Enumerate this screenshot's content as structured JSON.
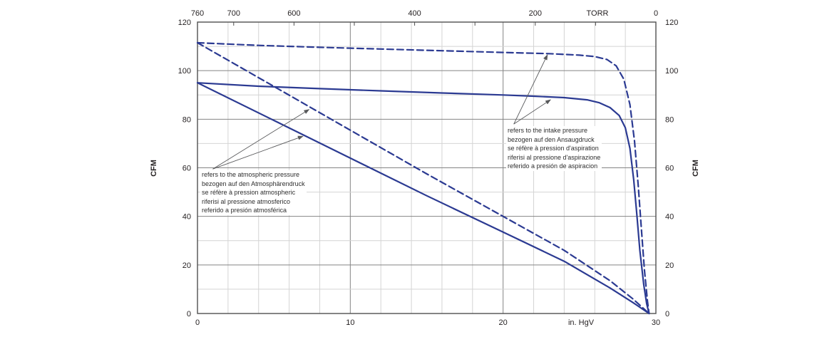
{
  "page": {
    "background": "#ffffff"
  },
  "chart_data": {
    "type": "line",
    "title": "",
    "axes": {
      "bottom": {
        "label": "in. HgV",
        "range": [
          0,
          30
        ],
        "tick_labels": [
          0,
          10,
          20,
          30
        ],
        "minor_step": 2,
        "major_gridlines": [
          10,
          20
        ]
      },
      "top": {
        "label": "TORR",
        "range": [
          760,
          0
        ],
        "tick_labels": [
          760,
          700,
          600,
          400,
          200,
          0
        ],
        "tick_marks": [
          700,
          600,
          500,
          400,
          300,
          200,
          100
        ]
      },
      "left": {
        "label": "CFM",
        "range": [
          0,
          120
        ],
        "tick_labels": [
          0,
          20,
          40,
          60,
          80,
          100,
          120
        ],
        "minor_step": 10,
        "major_step": 20
      },
      "right": {
        "label": "CFM",
        "tick_labels": [
          0,
          20,
          40,
          60,
          80,
          100,
          120
        ]
      }
    },
    "colors": {
      "curve": "#2b3a92",
      "grid_minor": "#d4d4d4",
      "grid_major": "#848484",
      "frame": "#4f4f4f",
      "arrow": "#58595b",
      "text": "#231f20"
    },
    "series": [
      {
        "name": "flow-vs-intake-pressure-dashed",
        "style": "dashed",
        "points": [
          [
            0,
            111.5
          ],
          [
            4,
            110.4
          ],
          [
            8,
            109.6
          ],
          [
            12,
            108.9
          ],
          [
            16,
            108.2
          ],
          [
            20,
            107.5
          ],
          [
            23,
            107
          ],
          [
            25,
            106.4
          ],
          [
            26,
            105.8
          ],
          [
            26.8,
            104.6
          ],
          [
            27.4,
            102
          ],
          [
            27.9,
            96.5
          ],
          [
            28.3,
            86
          ],
          [
            28.6,
            71
          ],
          [
            28.85,
            52
          ],
          [
            29.05,
            35
          ],
          [
            29.25,
            18
          ],
          [
            29.45,
            5
          ],
          [
            29.55,
            0
          ]
        ]
      },
      {
        "name": "flow-vs-intake-pressure-solid",
        "style": "solid",
        "points": [
          [
            0,
            95
          ],
          [
            4,
            93.6
          ],
          [
            8,
            92.6
          ],
          [
            12,
            91.7
          ],
          [
            16,
            90.8
          ],
          [
            20,
            90
          ],
          [
            22,
            89.5
          ],
          [
            24,
            88.9
          ],
          [
            25.5,
            88
          ],
          [
            26.3,
            86.8
          ],
          [
            27,
            84.8
          ],
          [
            27.6,
            81.5
          ],
          [
            28,
            76.5
          ],
          [
            28.3,
            68
          ],
          [
            28.55,
            55
          ],
          [
            28.75,
            41
          ],
          [
            28.95,
            26
          ],
          [
            29.2,
            12
          ],
          [
            29.4,
            4
          ],
          [
            29.55,
            0
          ]
        ]
      },
      {
        "name": "flow-vs-atmospheric-pressure-dashed",
        "style": "dashed",
        "points": [
          [
            0,
            111.5
          ],
          [
            5,
            93.5
          ],
          [
            10,
            75.5
          ],
          [
            15,
            57.5
          ],
          [
            20,
            40
          ],
          [
            24,
            26
          ],
          [
            27,
            13.5
          ],
          [
            28.5,
            6
          ],
          [
            29.55,
            0
          ]
        ]
      },
      {
        "name": "flow-vs-atmospheric-pressure-solid",
        "style": "solid",
        "points": [
          [
            0,
            95
          ],
          [
            5,
            79.5
          ],
          [
            10,
            64
          ],
          [
            15,
            48.5
          ],
          [
            20,
            33.5
          ],
          [
            24,
            21.5
          ],
          [
            27,
            10.5
          ],
          [
            28.5,
            4.5
          ],
          [
            29.55,
            0
          ]
        ]
      }
    ],
    "annotations": [
      {
        "id": "atmospheric",
        "lines": [
          "refers to the atmospheric pressure",
          "bezogen auf den Atmosphärendruck",
          "se réfère à pression atmospheric",
          "riferisi al pressione atmosferico",
          "referido a presión atmosférica"
        ],
        "arrow_origin": [
          1.0,
          59.5
        ],
        "arrow_targets": [
          [
            7.3,
            84
          ],
          [
            6.9,
            73
          ]
        ]
      },
      {
        "id": "intake",
        "lines": [
          "refers to the intake pressure",
          "bezogen auf den Ansaugdruck",
          "se réfère à pression d'aspiration",
          "riferisi al pressione d'aspirazione",
          "referido a presión de aspiracion"
        ],
        "arrow_origin": [
          20.7,
          78
        ],
        "arrow_targets": [
          [
            22.9,
            106.5
          ],
          [
            23.1,
            88
          ]
        ]
      }
    ]
  }
}
